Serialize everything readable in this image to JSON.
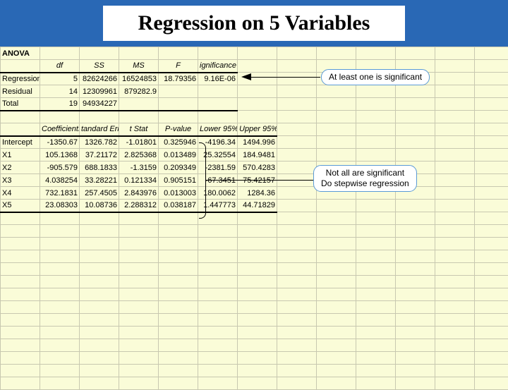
{
  "title": "Regression on 5 Variables",
  "colors": {
    "header_bg": "#2968b5",
    "sheet_bg": "#fafcd8",
    "grid_line": "#c8c8b0",
    "callout_border": "#5a9ad6",
    "highlight_text": "#c89000"
  },
  "anova": {
    "label": "ANOVA",
    "headers": {
      "df": "df",
      "ss": "SS",
      "ms": "MS",
      "f": "F",
      "sig": "ignificance F"
    },
    "rows": [
      {
        "name": "Regression",
        "df": "5",
        "ss": "82624266",
        "ms": "16524853",
        "f": "18.79356",
        "sig": "9.16E-06"
      },
      {
        "name": "Residual",
        "df": "14",
        "ss": "12309961",
        "ms": "879282.9",
        "f": "",
        "sig": ""
      },
      {
        "name": "Total",
        "df": "19",
        "ss": "94934227",
        "ms": "",
        "f": "",
        "sig": ""
      }
    ]
  },
  "coef": {
    "headers": {
      "coef": "Coefficients",
      "se": "tandard Err",
      "t": "t Stat",
      "p": "P-value",
      "lo": "Lower 95%",
      "hi": "Upper 95%"
    },
    "rows": [
      {
        "name": "Intercept",
        "coef": "-1350.67",
        "se": "1326.782",
        "t": "-1.01801",
        "p": "0.325946",
        "lo": "-4196.34",
        "hi": "1494.996"
      },
      {
        "name": "X1",
        "coef": "105.1368",
        "se": "37.21172",
        "t": "2.825368",
        "p": "0.013489",
        "lo": "25.32554",
        "hi": "184.9481"
      },
      {
        "name": "X2",
        "coef": "-905.579",
        "se": "688.1833",
        "t": "-1.3159",
        "p": "0.209349",
        "lo": "-2381.59",
        "hi": "570.4283"
      },
      {
        "name": "X3",
        "coef": "4.038254",
        "se": "33.28221",
        "t": "0.121334",
        "p": "0.905151",
        "lo": "-67.3451",
        "hi": "75.42157"
      },
      {
        "name": "X4",
        "coef": "732.1831",
        "se": "257.4505",
        "t": "2.843976",
        "p": "0.013003",
        "lo": "180.0062",
        "hi": "1284.36"
      },
      {
        "name": "X5",
        "coef": "23.08303",
        "se": "10.08736",
        "t": "2.288312",
        "p": "0.038187",
        "lo": "1.447773",
        "hi": "44.71829"
      }
    ]
  },
  "callouts": {
    "c1": "At least one is significant",
    "c2a": "Not all are significant",
    "c2b": "Do stepwise regression"
  }
}
